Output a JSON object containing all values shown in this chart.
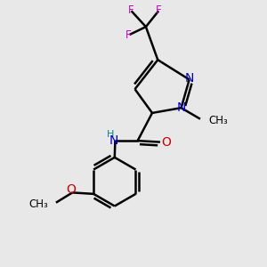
{
  "bg_color": "#e8e8e8",
  "bond_color": "#000000",
  "bond_width": 1.8,
  "atom_colors": {
    "C": "#000000",
    "N": "#0000cc",
    "O": "#cc0000",
    "F": "#cc00cc",
    "H": "#008888"
  },
  "font_size_atom": 10,
  "font_size_small": 8.5,
  "font_size_label": 9
}
